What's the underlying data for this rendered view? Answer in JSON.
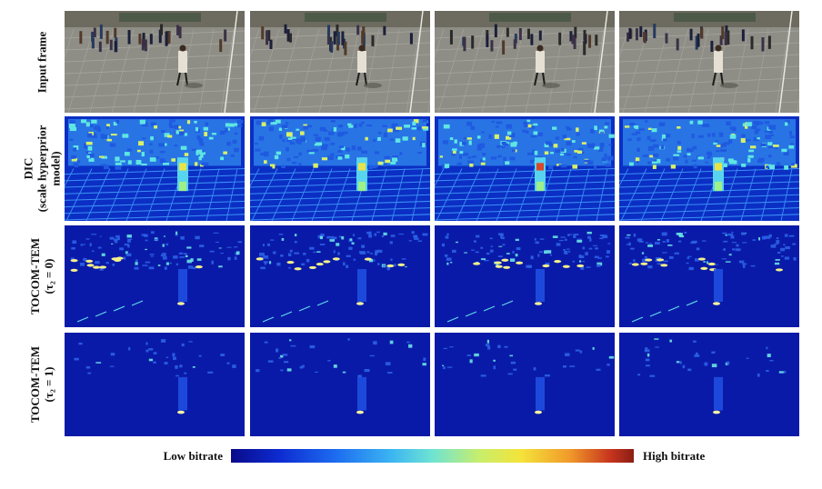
{
  "rows": [
    {
      "label_lines": [
        "Input frame"
      ]
    },
    {
      "label_lines": [
        "DIC",
        "(scale hyperprior",
        "model)"
      ]
    },
    {
      "label_lines": [
        "TOCOM-TEM",
        "(τ₂ = 0)"
      ]
    },
    {
      "label_lines": [
        "TOCOM-TEM",
        "(τ₂ = 1)"
      ]
    }
  ],
  "colorbar": {
    "low_label": "Low bitrate",
    "high_label": "High bitrate",
    "colors": [
      "#0a0a8a",
      "#0d2bd1",
      "#1d6cf0",
      "#3cb6f2",
      "#6fe3d3",
      "#c9ee6a",
      "#f4e33a",
      "#f19a2a",
      "#c8361e",
      "#8b1d14"
    ]
  }
}
